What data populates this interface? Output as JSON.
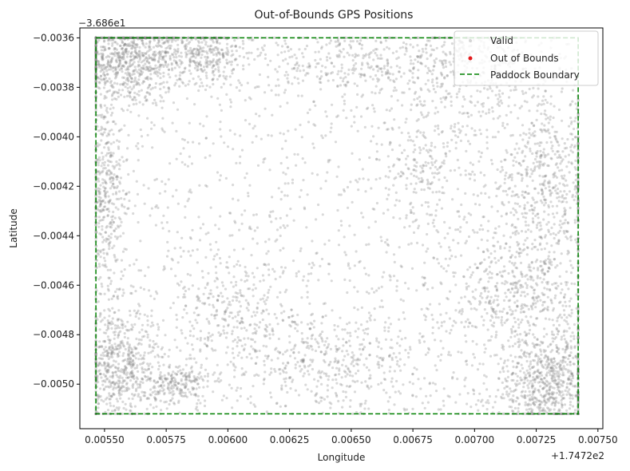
{
  "chart_data": {
    "type": "scatter",
    "title": "Out-of-Bounds GPS Positions",
    "xlabel": "Longitude",
    "ylabel": "Latitude",
    "x_offset_label": "+1.7472e2",
    "y_offset_label": "−3.686e1",
    "x_offset": 174.72,
    "y_offset": -36.86,
    "xlim": [
      0.0054,
      0.00752
    ],
    "ylim": [
      -0.00518,
      -0.00356
    ],
    "x_ticks": [
      0.0055,
      0.00575,
      0.006,
      0.00625,
      0.0065,
      0.00675,
      0.007,
      0.00725,
      0.0075
    ],
    "x_tick_labels": [
      "0.00550",
      "0.00575",
      "0.00600",
      "0.00625",
      "0.00650",
      "0.00675",
      "0.00700",
      "0.00725",
      "0.00750"
    ],
    "y_ticks": [
      -0.0036,
      -0.0038,
      -0.004,
      -0.0042,
      -0.0044,
      -0.0046,
      -0.0048,
      -0.005
    ],
    "y_tick_labels": [
      "−0.0036",
      "−0.0038",
      "−0.0040",
      "−0.0042",
      "−0.0044",
      "−0.0046",
      "−0.0048",
      "−0.0050"
    ],
    "grid": false,
    "legend_position": "top-right",
    "series": [
      {
        "name": "Valid",
        "kind": "points",
        "color": "#808080",
        "clusters": [
          {
            "x": 0.00558,
            "y": -0.00368,
            "sx": 0.00012,
            "sy": 0.0001,
            "n": 900
          },
          {
            "x": 0.0059,
            "y": -0.00366,
            "sx": 0.0001,
            "sy": 6e-05,
            "n": 350
          },
          {
            "x": 0.00556,
            "y": -0.00492,
            "sx": 8e-05,
            "sy": 0.00012,
            "n": 600
          },
          {
            "x": 0.0058,
            "y": -0.005,
            "sx": 6e-05,
            "sy": 4e-05,
            "n": 200
          },
          {
            "x": 0.0073,
            "y": -0.005,
            "sx": 0.00012,
            "sy": 0.0001,
            "n": 700
          },
          {
            "x": 0.0073,
            "y": -0.0042,
            "sx": 0.00012,
            "sy": 0.00018,
            "n": 600
          },
          {
            "x": 0.0072,
            "y": -0.00465,
            "sx": 0.00016,
            "sy": 0.00014,
            "n": 500
          },
          {
            "x": 0.0055,
            "y": -0.00425,
            "sx": 4e-05,
            "sy": 0.0002,
            "n": 400
          },
          {
            "x": 0.007,
            "y": -0.0037,
            "sx": 0.00015,
            "sy": 0.0001,
            "n": 350
          },
          {
            "x": 0.0065,
            "y": -0.0037,
            "sx": 0.0002,
            "sy": 8e-05,
            "n": 300
          },
          {
            "x": 0.0064,
            "y": -0.0049,
            "sx": 0.0002,
            "sy": 0.0001,
            "n": 350
          },
          {
            "x": 0.006,
            "y": -0.0047,
            "sx": 0.00016,
            "sy": 0.00012,
            "n": 300
          },
          {
            "x": 0.0068,
            "y": -0.0041,
            "sx": 0.00012,
            "sy": 0.00012,
            "n": 200
          }
        ],
        "uniform_points": 1500
      },
      {
        "name": "Out of Bounds",
        "kind": "points",
        "color": "#e31a1c",
        "points": []
      },
      {
        "name": "Paddock Boundary",
        "kind": "dashed-line",
        "color": "#008000",
        "x": [
          0.005465,
          0.00742,
          0.00742,
          0.005465,
          0.005465
        ],
        "y": [
          -0.0036,
          -0.0036,
          -0.00512,
          -0.00512,
          -0.0036
        ]
      }
    ]
  }
}
